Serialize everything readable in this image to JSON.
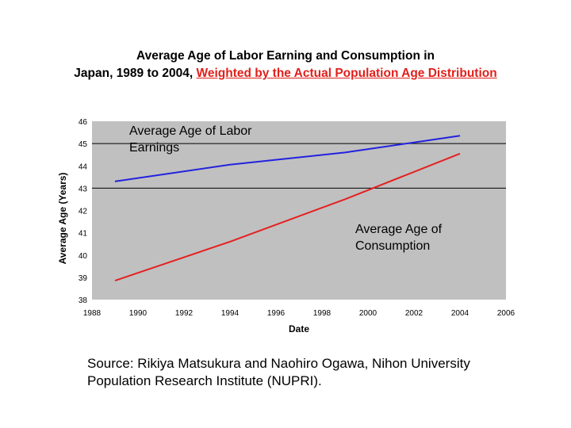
{
  "title": {
    "part1": "Average Age of Labor Earning and Consumption in",
    "part2": "Japan, 1989 to 2004, ",
    "part3": "Weighted by the Actual Population Age Distribution"
  },
  "source": "Source: Rikiya Matsukura and Naohiro Ogawa, Nihon University Population Research Institute (NUPRI).",
  "colors": {
    "plot_bg": "#c0c0c0",
    "earnings": "#2222e0",
    "consumption": "#e62020",
    "gridline": "#000000"
  },
  "chart_data": {
    "type": "line",
    "title": "Average Age of Labor Earning and Consumption in Japan, 1989 to 2004, Weighted by the Actual Population Age Distribution",
    "xlabel": "Date",
    "ylabel": "Average Age (Years)",
    "xlim": [
      1988,
      2006
    ],
    "ylim": [
      38,
      46
    ],
    "xticks": [
      "1988",
      "1990",
      "1992",
      "1994",
      "1996",
      "1998",
      "2000",
      "2002",
      "2004",
      "2006"
    ],
    "yticks": [
      "38",
      "39",
      "40",
      "41",
      "42",
      "43",
      "44",
      "45",
      "46"
    ],
    "gridlines_y": [
      43,
      45
    ],
    "series": [
      {
        "name": "Average Age of Labor Earnings",
        "color": "#2222e0",
        "x": [
          1989,
          1994,
          1999,
          2002,
          2004
        ],
        "y": [
          43.3,
          44.05,
          44.6,
          45.05,
          45.35
        ]
      },
      {
        "name": "Average Age of Consumption",
        "color": "#e62020",
        "x": [
          1989,
          1994,
          1999,
          2004
        ],
        "y": [
          38.85,
          40.6,
          42.5,
          44.55
        ]
      }
    ],
    "annotations": [
      {
        "text": "Average Age of Labor Earnings",
        "series": "Average Age of Labor Earnings"
      },
      {
        "text": "Average Age of Consumption",
        "series": "Average Age of Consumption"
      }
    ]
  }
}
